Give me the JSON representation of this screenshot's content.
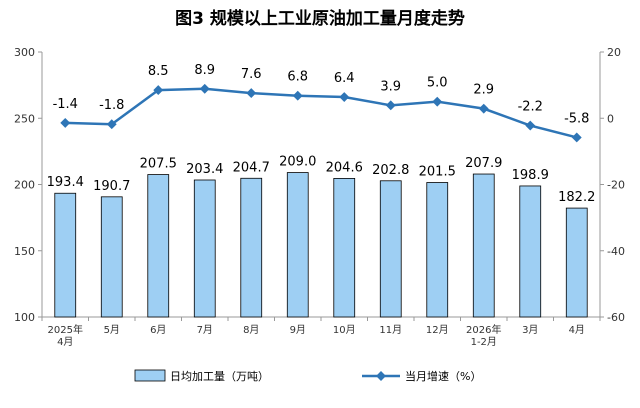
{
  "chart_data": {
    "type": "bar",
    "title": "图3  规模以上工业原油加工量月度走势",
    "categories": [
      "2025年\n4月",
      "5月",
      "6月",
      "7月",
      "8月",
      "9月",
      "10月",
      "11月",
      "12月",
      "2026年\n1-2月",
      "3月",
      "4月"
    ],
    "series": [
      {
        "name": "日均加工量（万吨）",
        "type": "bar",
        "axis": "left",
        "values": [
          193.4,
          190.7,
          207.5,
          203.4,
          204.7,
          209.0,
          204.6,
          202.8,
          201.5,
          207.9,
          198.9,
          182.2
        ],
        "labels": [
          "193.4",
          "190.7",
          "207.5",
          "203.4",
          "204.7",
          "209.0",
          "204.6",
          "202.8",
          "201.5",
          "207.9",
          "198.9",
          "182.2"
        ],
        "color": "#9ecff3"
      },
      {
        "name": "当月增速（%）",
        "type": "line",
        "axis": "right",
        "values": [
          -1.4,
          -1.8,
          8.5,
          8.9,
          7.6,
          6.8,
          6.4,
          3.9,
          5.0,
          2.9,
          -2.2,
          -5.8
        ],
        "labels": [
          "-1.4",
          "-1.8",
          "8.5",
          "8.9",
          "7.6",
          "6.8",
          "6.4",
          "3.9",
          "5.0",
          "2.9",
          "-2.2",
          "-5.8"
        ],
        "color": "#2e75b6"
      }
    ],
    "y_left": {
      "min": 100,
      "max": 300,
      "ticks": [
        "100",
        "150",
        "200",
        "250",
        "300"
      ]
    },
    "y_right": {
      "min": -60,
      "max": 20,
      "ticks": [
        "-60",
        "-40",
        "-20",
        "0",
        "20"
      ]
    },
    "legend_position": "bottom",
    "grid": false
  }
}
